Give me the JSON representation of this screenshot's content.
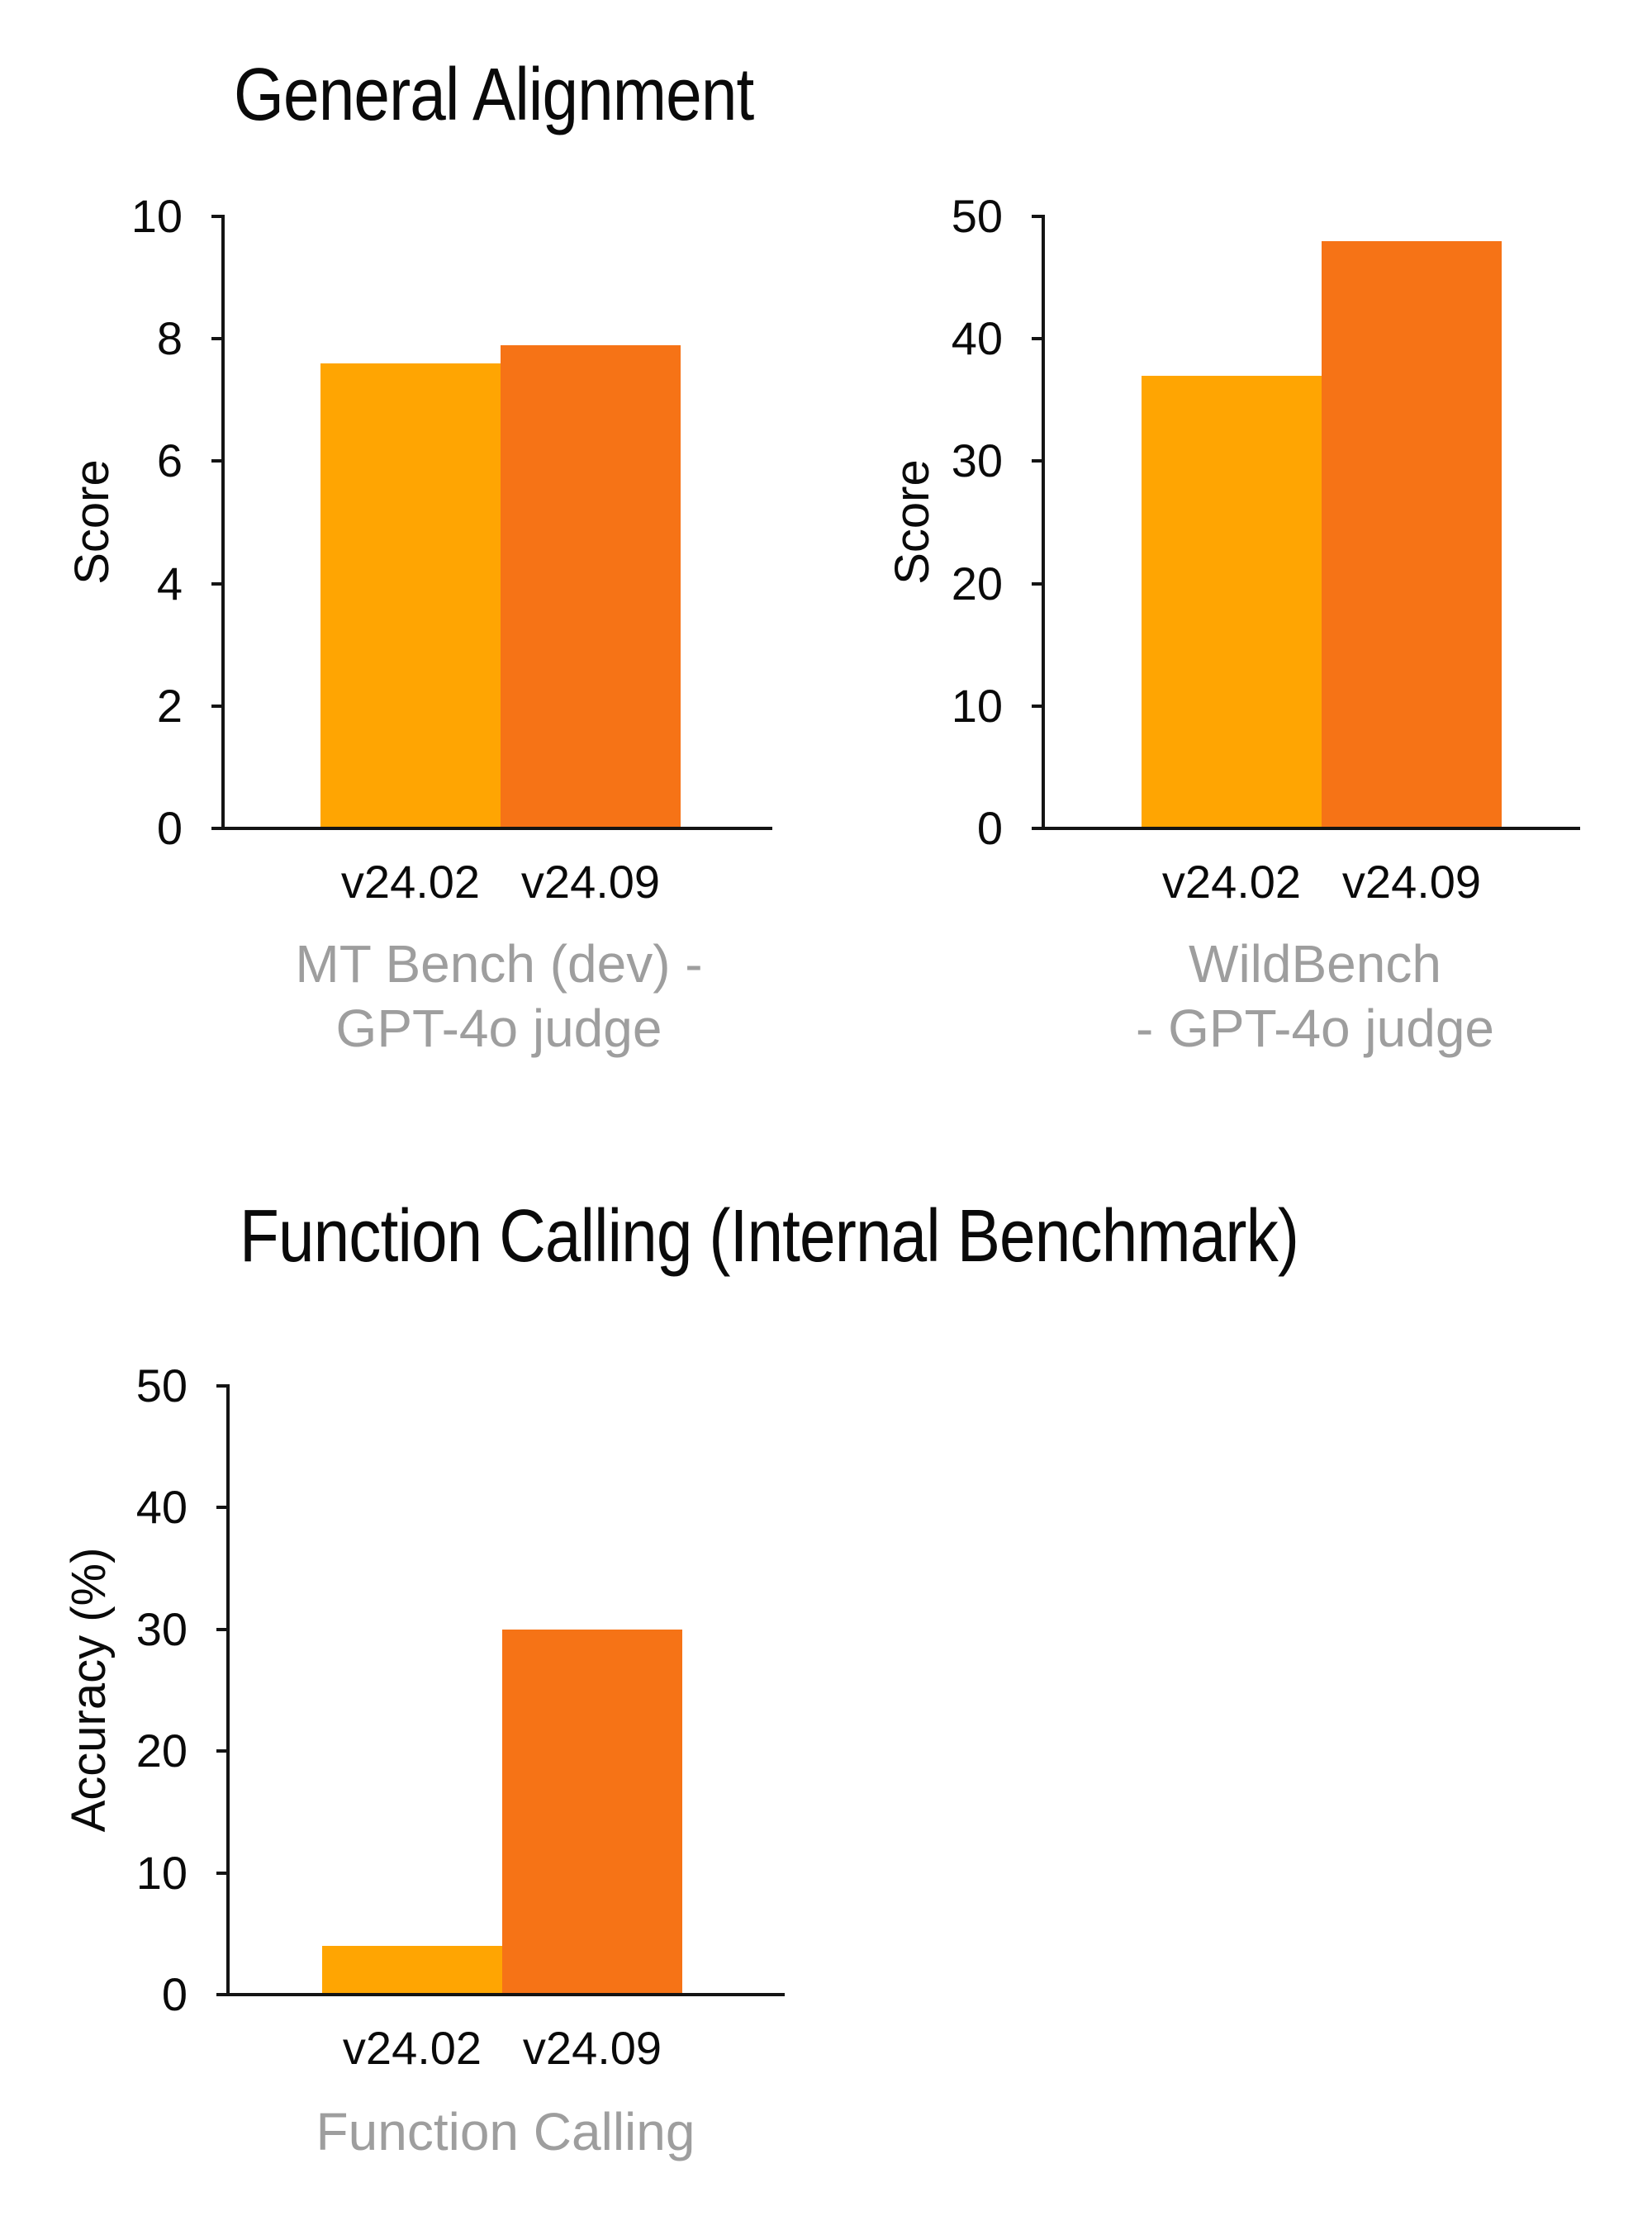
{
  "figure": {
    "background": "#ffffff",
    "section_titles": [
      {
        "text": "General Alignment"
      },
      {
        "text": "Function Calling (Internal Benchmark)"
      }
    ]
  },
  "colors": {
    "bar_v24_02": "#FFA502",
    "bar_v24_09": "#F67316",
    "axis": "#141414",
    "tick_text": "#0a0a0a",
    "caption_text": "#9E9E9E"
  },
  "chart_data": [
    {
      "type": "bar",
      "title": "General Alignment",
      "benchmark": "MT Bench (dev) - GPT-4o judge",
      "categories": [
        "v24.02",
        "v24.09"
      ],
      "values": [
        7.6,
        7.9
      ],
      "bar_colors": [
        "#FFA502",
        "#F67316"
      ],
      "xlabel": "",
      "ylabel": "Score",
      "ylim": [
        0,
        10
      ],
      "yticks": [
        0,
        2,
        4,
        6,
        8,
        10
      ],
      "footer_lines": [
        "MT Bench (dev) -",
        "GPT-4o judge"
      ],
      "grid": false,
      "legend": "none"
    },
    {
      "type": "bar",
      "title": "General Alignment",
      "benchmark": "WildBench - GPT-4o judge",
      "categories": [
        "v24.02",
        "v24.09"
      ],
      "values": [
        37,
        48
      ],
      "bar_colors": [
        "#FFA502",
        "#F67316"
      ],
      "xlabel": "",
      "ylabel": "Score",
      "ylim": [
        0,
        50
      ],
      "yticks": [
        0,
        10,
        20,
        30,
        40,
        50
      ],
      "footer_lines": [
        "WildBench",
        "- GPT-4o judge"
      ],
      "grid": false,
      "legend": "none"
    },
    {
      "type": "bar",
      "title": "Function Calling (Internal Benchmark)",
      "benchmark": "Function Calling",
      "categories": [
        "v24.02",
        "v24.09"
      ],
      "values": [
        4,
        30
      ],
      "bar_colors": [
        "#FFA502",
        "#F67316"
      ],
      "xlabel": "",
      "ylabel": "Accuracy (%)",
      "ylim": [
        0,
        50
      ],
      "yticks": [
        0,
        10,
        20,
        30,
        40,
        50
      ],
      "footer_lines": [
        "Function Calling"
      ],
      "grid": false,
      "legend": "none"
    }
  ]
}
